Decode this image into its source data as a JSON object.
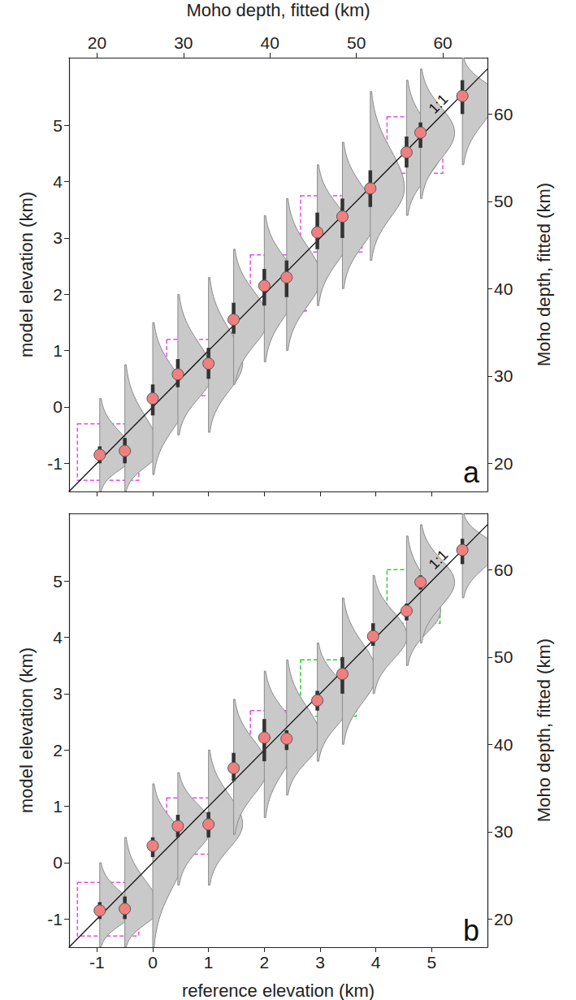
{
  "chart_data": [
    {
      "type": "scatter",
      "panel_label": "a",
      "ylabel": "model elevation (km)",
      "x2label": "Moho depth, fitted (km)",
      "y2label": "Moho depth, fitted (km)",
      "reference_line": "1:1",
      "xlim": [
        -1.5,
        6
      ],
      "xticks": [
        -1,
        0,
        1,
        2,
        3,
        4,
        5
      ],
      "ylim": [
        -1.5,
        6.2
      ],
      "yticks": [
        -1,
        0,
        1,
        2,
        3,
        4,
        5
      ],
      "x2lim": [
        16.77,
        65.16
      ],
      "x2ticks": [
        20,
        30,
        40,
        50,
        60
      ],
      "y2lim": [
        16.77,
        66.45
      ],
      "y2ticks": [
        20,
        30,
        40,
        50,
        60
      ],
      "tick_labels": "y",
      "color": "#f08080",
      "x": [
        -0.95,
        -0.5,
        0.0,
        0.45,
        1.0,
        1.45,
        2.0,
        2.4,
        2.95,
        3.4,
        3.9,
        4.55,
        4.8,
        5.55
      ],
      "values": [
        -0.85,
        -0.78,
        0.15,
        0.58,
        0.77,
        1.55,
        2.15,
        2.3,
        3.1,
        3.38,
        3.88,
        4.52,
        4.87,
        5.52
      ],
      "error_low": [
        -1.0,
        -1.0,
        -0.15,
        0.35,
        0.5,
        1.3,
        1.8,
        1.95,
        2.8,
        3.0,
        3.55,
        4.25,
        4.6,
        5.2
      ],
      "error_high": [
        -0.7,
        -0.55,
        0.4,
        0.85,
        1.05,
        1.85,
        2.45,
        2.6,
        3.45,
        3.7,
        4.2,
        4.8,
        5.05,
        5.8
      ],
      "distribution_low": [
        -1.5,
        -1.5,
        -1.2,
        -0.5,
        -0.45,
        0.4,
        0.8,
        1.0,
        1.8,
        2.1,
        2.6,
        3.4,
        3.7,
        4.3
      ],
      "distribution_high": [
        0.15,
        0.75,
        1.5,
        2.0,
        2.3,
        2.8,
        3.4,
        3.7,
        4.3,
        4.7,
        5.6,
        5.8,
        6.0,
        6.2
      ],
      "boxes": [
        {
          "x": [
            -1.35,
            -0.25
          ],
          "y": [
            -1.3,
            -0.3
          ],
          "color": "#e64ce6"
        },
        {
          "x": [
            0.25,
            1.2
          ],
          "y": [
            0.2,
            1.2
          ],
          "color": "#e64ce6"
        },
        {
          "x": [
            1.75,
            2.75
          ],
          "y": [
            1.7,
            2.7
          ],
          "color": "#e64ce6"
        },
        {
          "x": [
            2.65,
            3.75
          ],
          "y": [
            2.75,
            3.75
          ],
          "color": "#e64ce6"
        },
        {
          "x": [
            4.2,
            5.2
          ],
          "y": [
            4.15,
            5.15
          ],
          "color": "#e64ce6"
        }
      ]
    },
    {
      "type": "scatter",
      "panel_label": "b",
      "xlabel": "reference elevation (km)",
      "ylabel": "model elevation (km)",
      "y2label": "Moho depth, fitted (km)",
      "reference_line": "1:1",
      "xlim": [
        -1.5,
        6
      ],
      "xticks": [
        -1,
        0,
        1,
        2,
        3,
        4,
        5
      ],
      "ylim": [
        -1.5,
        6.2
      ],
      "yticks": [
        -1,
        0,
        1,
        2,
        3,
        4,
        5
      ],
      "y2lim": [
        16.77,
        66.45
      ],
      "y2ticks": [
        20,
        30,
        40,
        50,
        60
      ],
      "color": "#f08080",
      "x": [
        -0.95,
        -0.5,
        0.0,
        0.45,
        1.0,
        1.45,
        2.0,
        2.4,
        2.95,
        3.4,
        3.95,
        4.55,
        4.8,
        5.55
      ],
      "values": [
        -0.85,
        -0.82,
        0.3,
        0.65,
        0.68,
        1.68,
        2.22,
        2.2,
        2.88,
        3.35,
        4.02,
        4.47,
        4.98,
        5.55
      ],
      "error_low": [
        -1.0,
        -1.0,
        0.1,
        0.45,
        0.45,
        1.45,
        1.8,
        2.0,
        2.7,
        3.0,
        3.85,
        4.3,
        4.85,
        5.3
      ],
      "error_high": [
        -0.7,
        -0.6,
        0.45,
        0.85,
        0.9,
        1.95,
        2.55,
        2.35,
        3.05,
        3.65,
        4.25,
        4.6,
        5.1,
        5.75
      ],
      "distribution_low": [
        -1.5,
        -1.5,
        -1.5,
        -0.4,
        -0.4,
        0.5,
        0.8,
        1.2,
        1.8,
        2.1,
        3.0,
        3.5,
        3.9,
        4.7
      ],
      "distribution_high": [
        0.0,
        0.45,
        1.4,
        1.6,
        2.0,
        2.9,
        3.4,
        3.6,
        3.9,
        4.7,
        5.1,
        5.8,
        6.0,
        6.2
      ],
      "boxes": [
        {
          "x": [
            -1.35,
            -0.25
          ],
          "y": [
            -1.3,
            -0.35
          ],
          "color": "#e64ce6"
        },
        {
          "x": [
            0.25,
            1.25
          ],
          "y": [
            0.15,
            1.15
          ],
          "color": "#e64ce6"
        },
        {
          "x": [
            1.75,
            2.7
          ],
          "y": [
            1.7,
            2.7
          ],
          "color": "#e64ce6"
        },
        {
          "x": [
            2.65,
            3.65
          ],
          "y": [
            2.6,
            3.6
          ],
          "color": "#33cc33"
        },
        {
          "x": [
            4.2,
            5.15
          ],
          "y": [
            4.25,
            5.2
          ],
          "color": "#33cc33"
        }
      ]
    }
  ]
}
